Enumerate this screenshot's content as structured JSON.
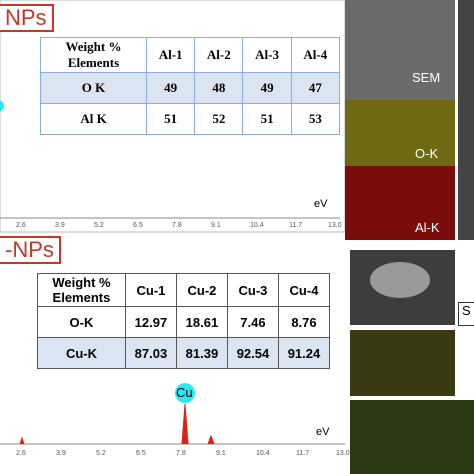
{
  "top_panel": {
    "label": "NPs",
    "table": {
      "corner": [
        "Weight %",
        "Elements"
      ],
      "header": [
        "Al-1",
        "Al-2",
        "Al-3",
        "Al-4"
      ],
      "rows": [
        [
          "O K",
          "49",
          "48",
          "49",
          "47"
        ],
        [
          "Al K",
          "51",
          "52",
          "51",
          "53"
        ]
      ]
    },
    "axis_ticks": [
      "2.6",
      "3.9",
      "5.2",
      "6.5",
      "7.8",
      "9.1",
      "10.4",
      "11.7",
      "13.0"
    ],
    "axis_unit": "eV",
    "images": [
      "SEM",
      "O-K",
      "Al-K"
    ]
  },
  "bottom_panel": {
    "label": "-NPs",
    "table": {
      "corner": [
        "Weight %",
        "Elements"
      ],
      "header": [
        "Cu-1",
        "Cu-2",
        "Cu-3",
        "Cu-4"
      ],
      "rows": [
        [
          "O-K",
          "12.97",
          "18.61",
          "7.46",
          "8.76"
        ],
        [
          "Cu-K",
          "87.03",
          "81.39",
          "92.54",
          "91.24"
        ]
      ]
    },
    "peak_label": "Cu",
    "axis_ticks": [
      "2.6",
      "3.9",
      "5.2",
      "6.5",
      "7.8",
      "9.1",
      "10.4",
      "11.7",
      "13.0"
    ],
    "axis_unit": "eV",
    "images": [
      "S"
    ]
  }
}
